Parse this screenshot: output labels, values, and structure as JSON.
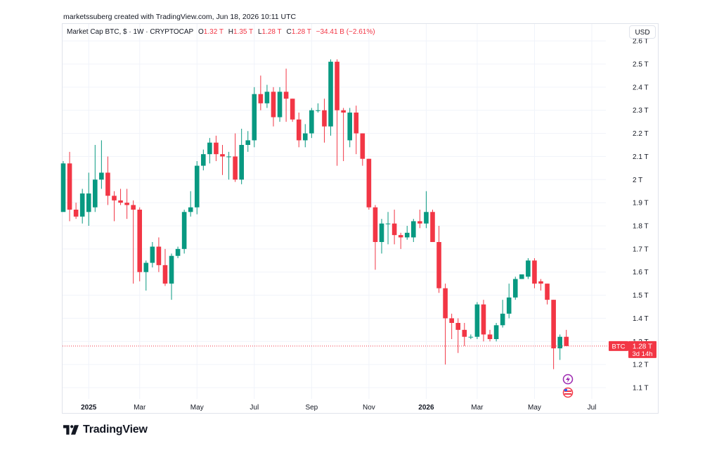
{
  "caption": "marketssuberg created with TradingView.com, Jun 18, 2026 10:11 UTC",
  "legend": {
    "symbol": "Market Cap BTC, $ · 1W · CRYPTOCAP",
    "o_label": "O",
    "o": "1.32 T",
    "h_label": "H",
    "h": "1.35 T",
    "l_label": "L",
    "l": "1.28 T",
    "c_label": "C",
    "c": "1.28 T",
    "change": "−34.41 B (−2.61%)"
  },
  "currency_button": "USD",
  "brand": {
    "name": "TradingView",
    "icon": "tradingview-logo-icon"
  },
  "colors": {
    "up": "#089981",
    "down": "#f23645",
    "grid": "#f0f3fa",
    "text": "#131722"
  },
  "chart_data": {
    "type": "candlestick",
    "unit": "T",
    "ylim": [
      1.05,
      2.62
    ],
    "y_ticks": [
      "1.1 T",
      "1.2 T",
      "1.3 T",
      "1.4 T",
      "1.5 T",
      "1.6 T",
      "1.7 T",
      "1.8 T",
      "1.9 T",
      "2 T",
      "2.1 T",
      "2.2 T",
      "2.3 T",
      "2.4 T",
      "2.5 T",
      "2.6 T"
    ],
    "y_tick_values": [
      1.1,
      1.2,
      1.3,
      1.4,
      1.5,
      1.6,
      1.7,
      1.8,
      1.9,
      2.0,
      2.1,
      2.2,
      2.3,
      2.4,
      2.5,
      2.6
    ],
    "x_ticks": [
      {
        "label": "2025",
        "bold": true,
        "bar": 4
      },
      {
        "label": "Mar",
        "bold": false,
        "bar": 12
      },
      {
        "label": "May",
        "bold": false,
        "bar": 21
      },
      {
        "label": "Jul",
        "bold": false,
        "bar": 30
      },
      {
        "label": "Sep",
        "bold": false,
        "bar": 39
      },
      {
        "label": "Nov",
        "bold": false,
        "bar": 48
      },
      {
        "label": "2026",
        "bold": true,
        "bar": 57
      },
      {
        "label": "Mar",
        "bold": false,
        "bar": 65
      },
      {
        "label": "May",
        "bold": false,
        "bar": 74
      },
      {
        "label": "Jul",
        "bold": false,
        "bar": 83
      }
    ],
    "candles": [
      {
        "o": 1.86,
        "h": 2.08,
        "l": 1.87,
        "c": 2.07
      },
      {
        "o": 2.07,
        "h": 2.12,
        "l": 1.82,
        "c": 1.87
      },
      {
        "o": 1.87,
        "h": 1.9,
        "l": 1.83,
        "c": 1.84
      },
      {
        "o": 1.84,
        "h": 1.96,
        "l": 1.81,
        "c": 1.94
      },
      {
        "o": 1.86,
        "h": 2.03,
        "l": 1.8,
        "c": 1.94
      },
      {
        "o": 1.88,
        "h": 2.15,
        "l": 1.86,
        "c": 2.0
      },
      {
        "o": 2.0,
        "h": 2.17,
        "l": 1.96,
        "c": 2.03
      },
      {
        "o": 2.03,
        "h": 2.1,
        "l": 1.89,
        "c": 1.93
      },
      {
        "o": 1.93,
        "h": 1.95,
        "l": 1.82,
        "c": 1.91
      },
      {
        "o": 1.91,
        "h": 1.96,
        "l": 1.89,
        "c": 1.9
      },
      {
        "o": 1.9,
        "h": 1.96,
        "l": 1.83,
        "c": 1.89
      },
      {
        "o": 1.89,
        "h": 1.91,
        "l": 1.55,
        "c": 1.87
      },
      {
        "o": 1.87,
        "h": 1.88,
        "l": 1.56,
        "c": 1.6
      },
      {
        "o": 1.6,
        "h": 1.65,
        "l": 1.52,
        "c": 1.64
      },
      {
        "o": 1.64,
        "h": 1.73,
        "l": 1.62,
        "c": 1.71
      },
      {
        "o": 1.71,
        "h": 1.75,
        "l": 1.6,
        "c": 1.63
      },
      {
        "o": 1.63,
        "h": 1.7,
        "l": 1.54,
        "c": 1.55
      },
      {
        "o": 1.55,
        "h": 1.68,
        "l": 1.48,
        "c": 1.67
      },
      {
        "o": 1.67,
        "h": 1.71,
        "l": 1.66,
        "c": 1.7
      },
      {
        "o": 1.7,
        "h": 1.87,
        "l": 1.68,
        "c": 1.86
      },
      {
        "o": 1.86,
        "h": 1.95,
        "l": 1.84,
        "c": 1.88
      },
      {
        "o": 1.88,
        "h": 2.08,
        "l": 1.85,
        "c": 2.06
      },
      {
        "o": 2.06,
        "h": 2.13,
        "l": 2.04,
        "c": 2.11
      },
      {
        "o": 2.11,
        "h": 2.18,
        "l": 2.07,
        "c": 2.16
      },
      {
        "o": 2.16,
        "h": 2.19,
        "l": 2.08,
        "c": 2.11
      },
      {
        "o": 2.11,
        "h": 2.15,
        "l": 2.02,
        "c": 2.1
      },
      {
        "o": 2.1,
        "h": 2.12,
        "l": 2.0,
        "c": 2.1
      },
      {
        "o": 2.1,
        "h": 2.2,
        "l": 1.99,
        "c": 2.0
      },
      {
        "o": 2.0,
        "h": 2.22,
        "l": 1.98,
        "c": 2.15
      },
      {
        "o": 2.15,
        "h": 2.21,
        "l": 2.12,
        "c": 2.17
      },
      {
        "o": 2.17,
        "h": 2.4,
        "l": 2.14,
        "c": 2.37
      },
      {
        "o": 2.37,
        "h": 2.45,
        "l": 2.3,
        "c": 2.33
      },
      {
        "o": 2.33,
        "h": 2.41,
        "l": 2.31,
        "c": 2.38
      },
      {
        "o": 2.38,
        "h": 2.4,
        "l": 2.23,
        "c": 2.27
      },
      {
        "o": 2.27,
        "h": 2.4,
        "l": 2.25,
        "c": 2.38
      },
      {
        "o": 2.38,
        "h": 2.48,
        "l": 2.25,
        "c": 2.35
      },
      {
        "o": 2.35,
        "h": 2.35,
        "l": 2.25,
        "c": 2.26
      },
      {
        "o": 2.26,
        "h": 2.29,
        "l": 2.14,
        "c": 2.17
      },
      {
        "o": 2.17,
        "h": 2.24,
        "l": 2.14,
        "c": 2.2
      },
      {
        "o": 2.2,
        "h": 2.31,
        "l": 2.18,
        "c": 2.3
      },
      {
        "o": 2.3,
        "h": 2.33,
        "l": 2.29,
        "c": 2.3
      },
      {
        "o": 2.3,
        "h": 2.35,
        "l": 2.16,
        "c": 2.23
      },
      {
        "o": 2.23,
        "h": 2.52,
        "l": 2.19,
        "c": 2.51
      },
      {
        "o": 2.51,
        "h": 2.52,
        "l": 2.06,
        "c": 2.3
      },
      {
        "o": 2.3,
        "h": 2.31,
        "l": 2.08,
        "c": 2.29
      },
      {
        "o": 2.17,
        "h": 2.31,
        "l": 2.14,
        "c": 2.29
      },
      {
        "o": 2.29,
        "h": 2.32,
        "l": 2.11,
        "c": 2.2
      },
      {
        "o": 2.2,
        "h": 2.2,
        "l": 2.06,
        "c": 2.09
      },
      {
        "o": 2.09,
        "h": 2.09,
        "l": 1.87,
        "c": 1.88
      },
      {
        "o": 1.88,
        "h": 1.89,
        "l": 1.61,
        "c": 1.73
      },
      {
        "o": 1.73,
        "h": 1.83,
        "l": 1.68,
        "c": 1.81
      },
      {
        "o": 1.81,
        "h": 1.86,
        "l": 1.72,
        "c": 1.81
      },
      {
        "o": 1.81,
        "h": 1.87,
        "l": 1.72,
        "c": 1.76
      },
      {
        "o": 1.76,
        "h": 1.77,
        "l": 1.7,
        "c": 1.75
      },
      {
        "o": 1.75,
        "h": 1.8,
        "l": 1.74,
        "c": 1.77
      },
      {
        "o": 1.75,
        "h": 1.83,
        "l": 1.73,
        "c": 1.82
      },
      {
        "o": 1.82,
        "h": 1.87,
        "l": 1.79,
        "c": 1.81
      },
      {
        "o": 1.81,
        "h": 1.95,
        "l": 1.79,
        "c": 1.86
      },
      {
        "o": 1.86,
        "h": 1.87,
        "l": 1.73,
        "c": 1.73
      },
      {
        "o": 1.73,
        "h": 1.8,
        "l": 1.51,
        "c": 1.53
      },
      {
        "o": 1.53,
        "h": 1.55,
        "l": 1.2,
        "c": 1.4
      },
      {
        "o": 1.4,
        "h": 1.42,
        "l": 1.31,
        "c": 1.38
      },
      {
        "o": 1.38,
        "h": 1.4,
        "l": 1.25,
        "c": 1.35
      },
      {
        "o": 1.35,
        "h": 1.38,
        "l": 1.28,
        "c": 1.32
      },
      {
        "o": 1.32,
        "h": 1.33,
        "l": 1.31,
        "c": 1.32
      },
      {
        "o": 1.32,
        "h": 1.47,
        "l": 1.31,
        "c": 1.46
      },
      {
        "o": 1.46,
        "h": 1.48,
        "l": 1.3,
        "c": 1.33
      },
      {
        "o": 1.33,
        "h": 1.35,
        "l": 1.3,
        "c": 1.31
      },
      {
        "o": 1.31,
        "h": 1.38,
        "l": 1.3,
        "c": 1.37
      },
      {
        "o": 1.37,
        "h": 1.48,
        "l": 1.36,
        "c": 1.42
      },
      {
        "o": 1.42,
        "h": 1.55,
        "l": 1.4,
        "c": 1.49
      },
      {
        "o": 1.49,
        "h": 1.58,
        "l": 1.48,
        "c": 1.57
      },
      {
        "o": 1.57,
        "h": 1.59,
        "l": 1.57,
        "c": 1.59
      },
      {
        "o": 1.58,
        "h": 1.66,
        "l": 1.57,
        "c": 1.65
      },
      {
        "o": 1.65,
        "h": 1.66,
        "l": 1.53,
        "c": 1.55
      },
      {
        "o": 1.56,
        "h": 1.57,
        "l": 1.52,
        "c": 1.55
      },
      {
        "o": 1.55,
        "h": 1.55,
        "l": 1.46,
        "c": 1.48
      },
      {
        "o": 1.48,
        "h": 1.48,
        "l": 1.18,
        "c": 1.27
      },
      {
        "o": 1.27,
        "h": 1.33,
        "l": 1.22,
        "c": 1.32
      },
      {
        "o": 1.32,
        "h": 1.35,
        "l": 1.28,
        "c": 1.28
      }
    ],
    "last_price": 1.28,
    "price_tag": {
      "symbol": "BTC",
      "value": "1.28 T",
      "countdown": "3d 14h"
    }
  }
}
